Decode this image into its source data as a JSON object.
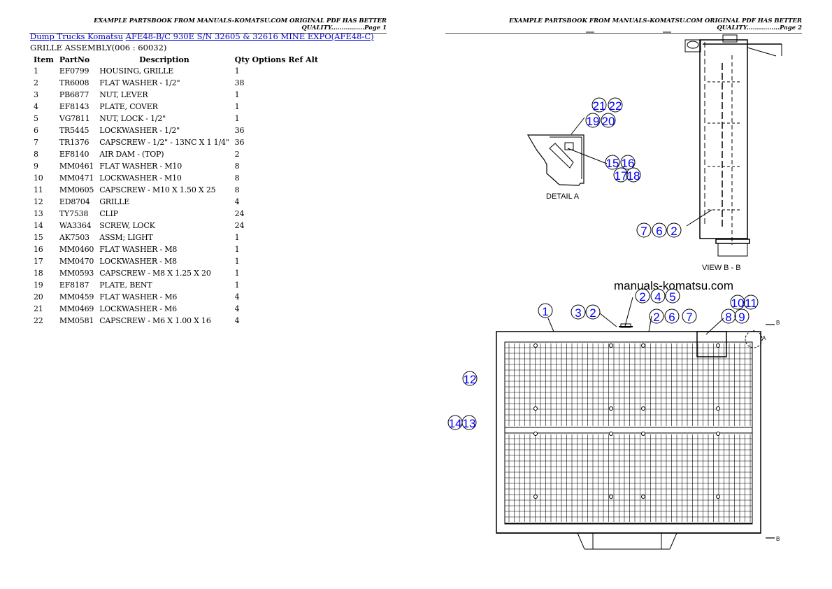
{
  "page1": {
    "header": "EXAMPLE PARTSBOOK FROM MANUALS-KOMATSU.COM ORIGINAL PDF HAS BETTER QUALITY................Page 1",
    "breadcrumb": {
      "category": "Dump Trucks Komatsu",
      "model": "AFE48-B/C 930E S/N 32605 & 32616 MINE EXPO(AFE48-C)"
    },
    "assembly": "GRILLE ASSEMBLY(006 : 60032)",
    "columns": {
      "item": "Item",
      "partno": "PartNo",
      "description": "Description",
      "qty_options": "Qty Options Ref Alt"
    },
    "rows": [
      {
        "item": "1",
        "partno": "EF0799",
        "description": "HOUSING, GRILLE",
        "qty": "1"
      },
      {
        "item": "2",
        "partno": "TR6008",
        "description": "FLAT WASHER - 1/2\"",
        "qty": "38"
      },
      {
        "item": "3",
        "partno": "PB6877",
        "description": "NUT, LEVER",
        "qty": "1"
      },
      {
        "item": "4",
        "partno": "EF8143",
        "description": "PLATE, COVER",
        "qty": "1"
      },
      {
        "item": "5",
        "partno": "VG7811",
        "description": "NUT, LOCK - 1/2\"",
        "qty": "1"
      },
      {
        "item": "6",
        "partno": "TR5445",
        "description": "LOCKWASHER - 1/2\"",
        "qty": "36"
      },
      {
        "item": "7",
        "partno": "TR1376",
        "description": "CAPSCREW - 1/2\" - 13NC X 1 1/4\"",
        "qty": "36"
      },
      {
        "item": "8",
        "partno": "EF8140",
        "description": "AIR DAM - (TOP)",
        "qty": "2"
      },
      {
        "item": "9",
        "partno": "MM0461",
        "description": "FLAT WASHER - M10",
        "qty": "8"
      },
      {
        "item": "10",
        "partno": "MM0471",
        "description": "LOCKWASHER - M10",
        "qty": "8"
      },
      {
        "item": "11",
        "partno": "MM0605",
        "description": "CAPSCREW - M10 X 1.50 X 25",
        "qty": "8"
      },
      {
        "item": "12",
        "partno": "ED8704",
        "description": "GRILLE",
        "qty": "4"
      },
      {
        "item": "13",
        "partno": "TY7538",
        "description": "CLIP",
        "qty": "24"
      },
      {
        "item": "14",
        "partno": "WA3364",
        "description": "SCREW, LOCK",
        "qty": "24"
      },
      {
        "item": "15",
        "partno": "AK7503",
        "description": "ASSM; LIGHT",
        "qty": "1"
      },
      {
        "item": "16",
        "partno": "MM0460",
        "description": "FLAT WASHER - M8",
        "qty": "1"
      },
      {
        "item": "17",
        "partno": "MM0470",
        "description": "LOCKWASHER - M8",
        "qty": "1"
      },
      {
        "item": "18",
        "partno": "MM0593",
        "description": "CAPSCREW - M8 X 1.25 X 20",
        "qty": "1"
      },
      {
        "item": "19",
        "partno": "EF8187",
        "description": "PLATE, BENT",
        "qty": "1"
      },
      {
        "item": "20",
        "partno": "MM0459",
        "description": "FLAT WASHER - M6",
        "qty": "4"
      },
      {
        "item": "21",
        "partno": "MM0469",
        "description": "LOCKWASHER - M6",
        "qty": "4"
      },
      {
        "item": "22",
        "partno": "MM0581",
        "description": "CAPSCREW - M6 X 1.00 X 16",
        "qty": "4"
      }
    ]
  },
  "page2": {
    "header": "EXAMPLE PARTSBOOK FROM MANUALS-KOMATSU.COM ORIGINAL PDF HAS BETTER QUALITY................Page 2",
    "labels": {
      "detail_a": "DETAIL  A",
      "view_bb": "VIEW  B - B",
      "watermark": "manuals-komatsu.com",
      "section_b": "B",
      "detail_marker": "A"
    },
    "callouts": [
      "21",
      "22",
      "19",
      "20",
      "15",
      "16",
      "17",
      "18",
      "7",
      "6",
      "2",
      "1",
      "3",
      "2",
      "2",
      "4",
      "5",
      "2",
      "6",
      "7",
      "10",
      "11",
      "8",
      "9",
      "12",
      "14",
      "13"
    ],
    "callout_color": "#0000ff"
  }
}
